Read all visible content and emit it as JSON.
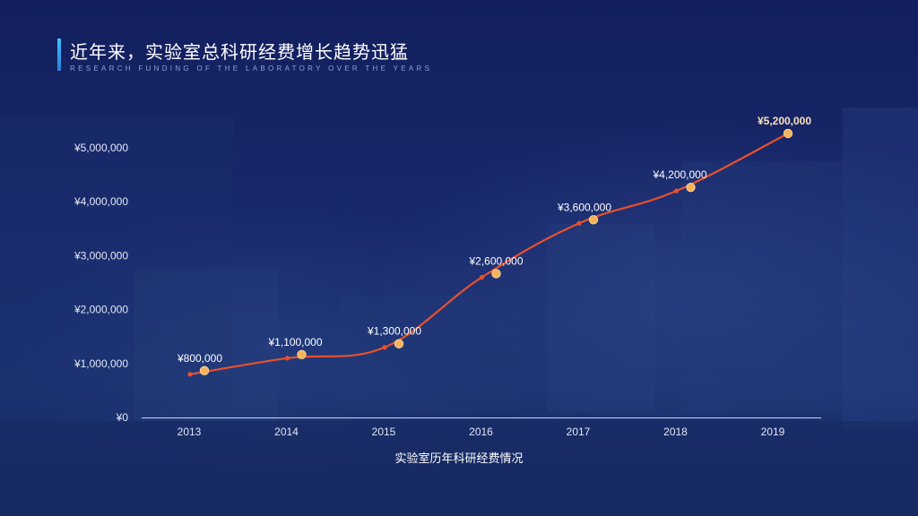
{
  "header": {
    "title": "近年来，实验室总科研经费增长趋势迅猛",
    "subtitle": "RESEARCH FUNDING OF THE LABORATORY OVER THE YEARS"
  },
  "colors": {
    "line": "#e8502c",
    "marker": "#f3b45c",
    "axis": "#c9d2ea"
  },
  "chart_data": {
    "type": "line",
    "title": "",
    "xlabel": "实验室历年科研经费情况",
    "ylabel": "",
    "categories": [
      "2013",
      "2014",
      "2015",
      "2016",
      "2017",
      "2018",
      "2019"
    ],
    "values": [
      800000,
      1100000,
      1300000,
      2600000,
      3600000,
      4200000,
      5200000
    ],
    "data_labels": [
      "¥800,000",
      "¥1,100,000",
      "¥1,300,000",
      "¥2,600,000",
      "¥3,600,000",
      "¥4,200,000",
      "¥5,200,000"
    ],
    "y_ticks": [
      0,
      1000000,
      2000000,
      3000000,
      4000000,
      5000000
    ],
    "y_tick_labels": [
      "¥0",
      "¥1,000,000",
      "¥2,000,000",
      "¥3,000,000",
      "¥4,000,000",
      "¥5,000,000"
    ],
    "ylim": [
      0,
      5000000
    ],
    "grid": false,
    "legend": "none",
    "smooth": true
  }
}
